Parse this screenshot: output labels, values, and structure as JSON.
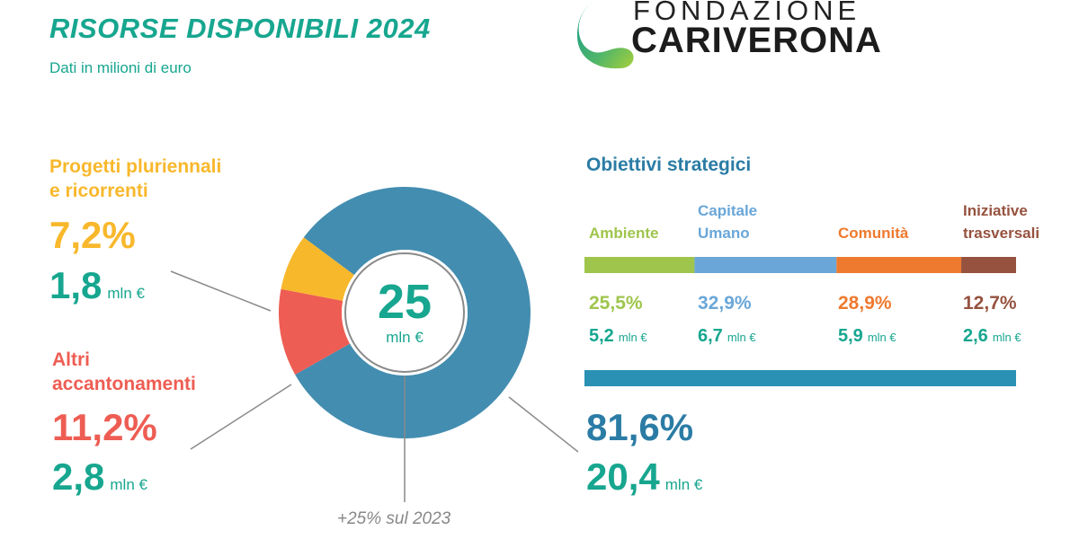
{
  "header": {
    "title": "RISORSE DISPONIBILI 2024",
    "subtitle": "Dati in milioni di euro"
  },
  "logo": {
    "line1": "FONDAZIONE",
    "line2": "CARIVERONA"
  },
  "colors": {
    "teal": "#17a68f",
    "blue": "#438db0",
    "yellow": "#f8b82c",
    "red": "#ee5d53",
    "ambiente": "#9fc54d",
    "capitale_umano": "#6aa7d8",
    "comunita": "#ee7a2f",
    "trasversali": "#96523f",
    "obiettivi_bar": "#2b91b4"
  },
  "chart_data": {
    "type": "pie",
    "donut": true,
    "center": {
      "value": "25",
      "unit": "mln €"
    },
    "slices": [
      {
        "label": "Obiettivi strategici",
        "percent": 81.6,
        "value": 20.4,
        "color": "#438db0"
      },
      {
        "label": "Altri accantonamenti",
        "percent": 11.2,
        "value": 2.8,
        "color": "#ee5d53"
      },
      {
        "label": "Progetti pluriennali e ricorrenti",
        "percent": 7.2,
        "value": 1.8,
        "color": "#f8b82c"
      }
    ],
    "footnote": "+25% sul 2023"
  },
  "left": {
    "progetti": {
      "title_line1": "Progetti pluriennali",
      "title_line2": "e ricorrenti",
      "percent": "7,2%",
      "value": "1,8",
      "unit": "mln €"
    },
    "altri": {
      "title_line1": "Altri",
      "title_line2": "accantonamenti",
      "percent": "11,2%",
      "value": "2,8",
      "unit": "mln €"
    }
  },
  "obiettivi": {
    "heading": "Obiettivi strategici",
    "percent": "81,6%",
    "value": "20,4",
    "unit": "mln €",
    "segments": [
      {
        "label_line1": "Ambiente",
        "label_line2": "",
        "percent": "25,5%",
        "pct_value": 25.5,
        "value": "5,2",
        "unit": "mln €",
        "color": "#9fc54d"
      },
      {
        "label_line1": "Capitale",
        "label_line2": "Umano",
        "percent": "32,9%",
        "pct_value": 32.9,
        "value": "6,7",
        "unit": "mln €",
        "color": "#6aa7d8"
      },
      {
        "label_line1": "Comunità",
        "label_line2": "",
        "percent": "28,9%",
        "pct_value": 28.9,
        "value": "5,9",
        "unit": "mln €",
        "color": "#ee7a2f"
      },
      {
        "label_line1": "Iniziative",
        "label_line2": "trasversali",
        "percent": "12,7%",
        "pct_value": 12.7,
        "value": "2,6",
        "unit": "mln €",
        "color": "#96523f"
      }
    ]
  }
}
